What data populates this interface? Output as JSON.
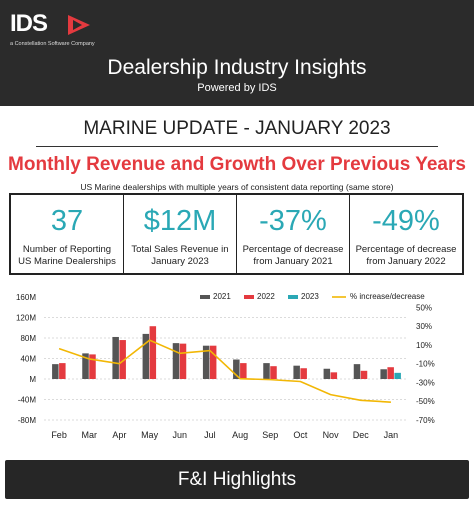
{
  "header": {
    "logo_text": "IDS",
    "tagline": "a Constellation Software Company",
    "title": "Dealership Industry Insights",
    "subtitle": "Powered by IDS",
    "colors": {
      "background": "#2b2b2b",
      "logo_accent": "#e43a3f"
    }
  },
  "update_title": "MARINE UPDATE - JANUARY 2023",
  "chart_heading": "Monthly Revenue and Growth Over Previous Years",
  "note": "US Marine dealerships with multiple years of consistent data reporting (same store)",
  "kpis": [
    {
      "value": "37",
      "label": "Number of Reporting US Marine Dealerships"
    },
    {
      "value": "$12M",
      "label": "Total Sales Revenue in January 2023"
    },
    {
      "value": "-37%",
      "label": "Percentage of decrease from January 2021"
    },
    {
      "value": "-49%",
      "label": "Percentage of decrease from January 2022"
    }
  ],
  "chart_data": {
    "type": "bar",
    "title": "",
    "xlabel": "",
    "ylabel": "",
    "categories": [
      "Feb",
      "Mar",
      "Apr",
      "May",
      "Jun",
      "Jul",
      "Aug",
      "Sep",
      "Oct",
      "Nov",
      "Dec",
      "Jan"
    ],
    "series": [
      {
        "name": "2021",
        "type": "bar",
        "axis": "left",
        "color": "#555555",
        "values": [
          29,
          50,
          82,
          88,
          70,
          65,
          38,
          31,
          26,
          20,
          29,
          19
        ]
      },
      {
        "name": "2022",
        "type": "bar",
        "axis": "left",
        "color": "#e43a3f",
        "values": [
          31,
          48,
          76,
          103,
          69,
          65,
          31,
          25,
          21,
          13,
          16,
          23
        ]
      },
      {
        "name": "2023",
        "type": "bar",
        "axis": "left",
        "color": "#2aa8b5",
        "values": [
          null,
          null,
          null,
          null,
          null,
          null,
          null,
          null,
          null,
          null,
          null,
          12
        ]
      },
      {
        "name": "% increase/decrease",
        "type": "line",
        "axis": "right",
        "color": "#f2b705",
        "values": [
          6,
          -5,
          -10,
          15,
          1,
          4,
          -26,
          -27,
          -29,
          -43,
          -49,
          -51
        ]
      }
    ],
    "left_axis": {
      "ticks": [
        "-80M",
        "-40M",
        "M",
        "40M",
        "80M",
        "120M"
      ],
      "tick_values": [
        -80,
        -40,
        0,
        40,
        80,
        120
      ],
      "top_label": "160M",
      "top_value": 160,
      "ylim": [
        -80,
        160
      ]
    },
    "right_axis": {
      "ticks": [
        "50%",
        "30%",
        "10%",
        "-10%",
        "-30%",
        "-50%",
        "-70%"
      ],
      "tick_values": [
        50,
        30,
        10,
        -10,
        -30,
        -50,
        -70
      ],
      "ylim": [
        -70,
        61
      ]
    },
    "gridlines": "horizontal-dotted",
    "legend_position": "top-right"
  },
  "footer": {
    "title": "F&I Highlights"
  }
}
